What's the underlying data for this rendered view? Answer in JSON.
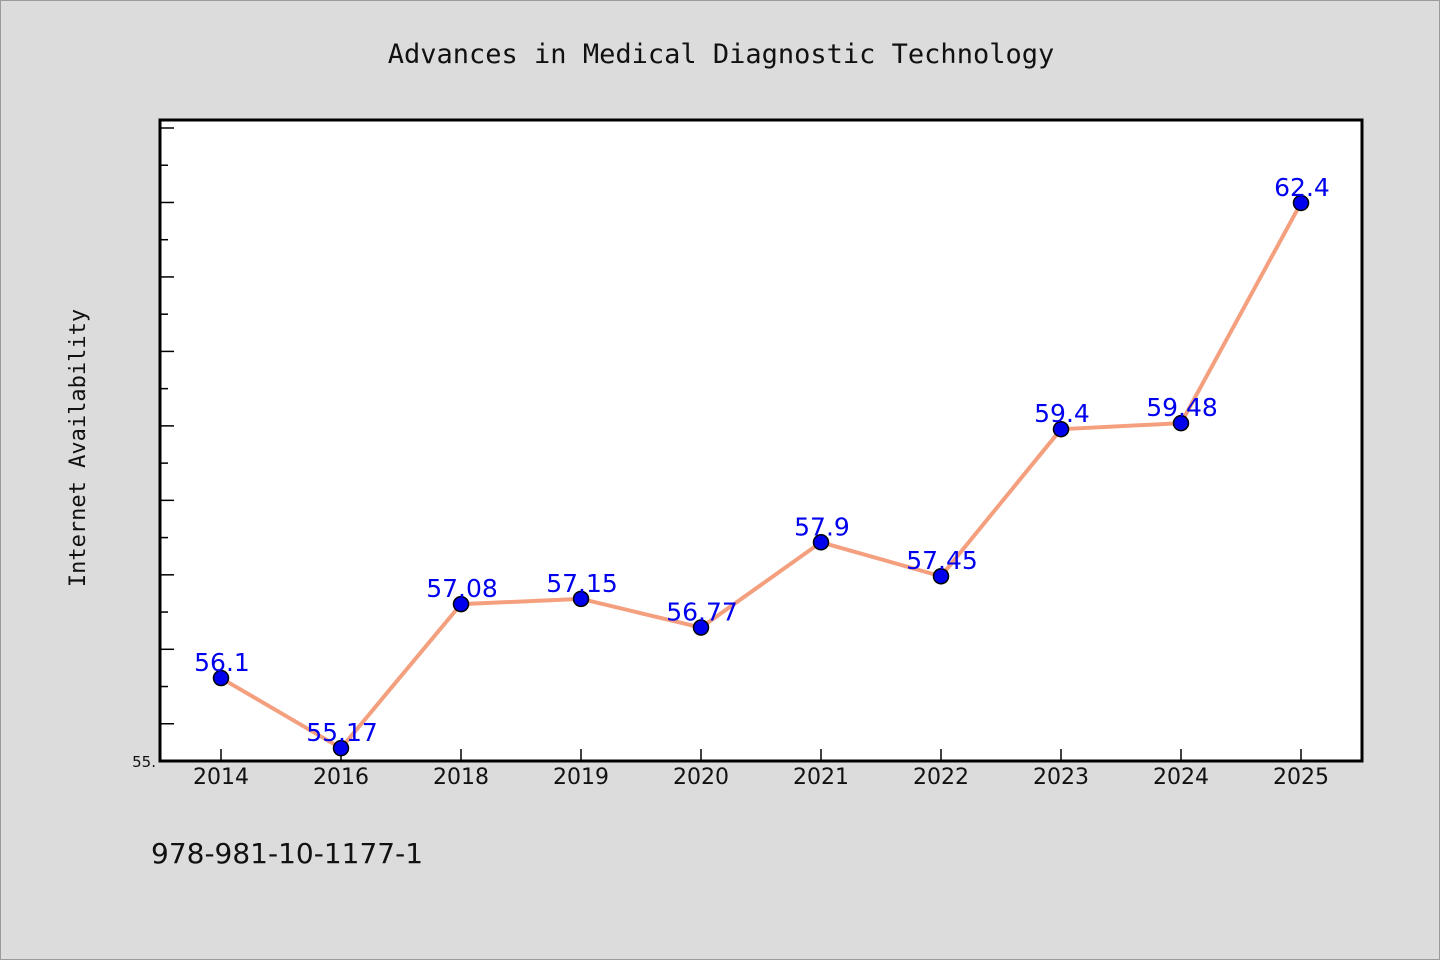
{
  "chart_data": {
    "type": "line",
    "title": "Advances in Medical Diagnostic Technology",
    "xlabel": "",
    "ylabel": "Internet Availability",
    "categories": [
      "2014",
      "2016",
      "2018",
      "2019",
      "2020",
      "2021",
      "2022",
      "2023",
      "2024",
      "2025"
    ],
    "series": [
      {
        "values": [
          56.1,
          55.17,
          57.08,
          57.15,
          56.77,
          57.9,
          57.45,
          59.4,
          59.48,
          62.4
        ]
      }
    ],
    "data_labels": [
      "56.1",
      "55.17",
      "57.08",
      "57.15",
      "56.77",
      "57.9",
      "57.45",
      "59.4",
      "59.48",
      "62.4"
    ],
    "ylim": [
      55.0,
      63.5
    ],
    "y_min_label": "55.",
    "grid": false,
    "legend": "none",
    "colors": {
      "line": "#f4a07e",
      "marker": "#0000ee",
      "marker_edge": "#000000",
      "label": "#0000ee",
      "background": "#dcdcdc",
      "plot_background": "#ffffff"
    }
  },
  "footer": {
    "isbn": "978-981-10-1177-1"
  }
}
